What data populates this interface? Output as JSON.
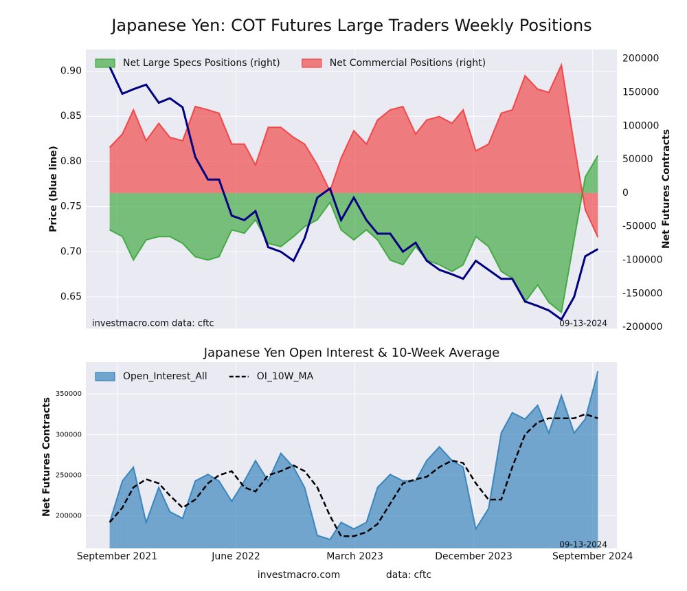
{
  "chart_data": [
    {
      "type": "area",
      "title": "Japanese Yen: COT Futures Large Traders Weekly Positions",
      "ylabel": "Price (blue line)",
      "y2label": "Net Futures Contracts",
      "annotations": [
        "investmacro.com    data: cftc",
        "09-13-2024"
      ],
      "grid": true,
      "legend": "upper left",
      "x": [
        2021.62,
        2021.7,
        2021.77,
        2021.85,
        2021.93,
        2022.0,
        2022.08,
        2022.16,
        2022.24,
        2022.31,
        2022.39,
        2022.47,
        2022.54,
        2022.62,
        2022.7,
        2022.78,
        2022.85,
        2022.93,
        2023.01,
        2023.08,
        2023.16,
        2023.24,
        2023.31,
        2023.39,
        2023.47,
        2023.55,
        2023.62,
        2023.7,
        2023.78,
        2023.85,
        2023.93,
        2024.01,
        2024.09,
        2024.16,
        2024.24,
        2024.32,
        2024.39,
        2024.47,
        2024.55,
        2024.62,
        2024.7
      ],
      "xlim": [
        2021.47,
        2024.82
      ],
      "xticks": [
        2021.667,
        2022.417,
        2023.167,
        2023.917,
        2024.667
      ],
      "ylim": [
        0.615,
        0.924
      ],
      "yticks": [
        {
          "value": 0.65,
          "label": "0.65"
        },
        {
          "value": 0.7,
          "label": "0.70"
        },
        0.75,
        {
          "value": 0.8,
          "label": "0.80"
        },
        0.85,
        {
          "value": 0.9,
          "label": "0.90"
        }
      ],
      "y2lim": [
        -202000,
        214000
      ],
      "y2ticks": [
        -200000,
        -150000,
        -100000,
        -50000,
        0,
        50000,
        100000,
        150000,
        200000
      ],
      "series": [
        {
          "name": "Net Large Specs Positions (right)",
          "color": "#2ca02c",
          "style": "area",
          "axis": "y2",
          "values": [
            -55000,
            -65000,
            -100000,
            -70000,
            -65000,
            -65000,
            -75000,
            -95000,
            -100000,
            -95000,
            -55000,
            -60000,
            -40000,
            -75000,
            -80000,
            -65000,
            -50000,
            -40000,
            -14000,
            -55000,
            -70000,
            -55000,
            -70000,
            -100000,
            -107000,
            -80000,
            -100000,
            -107000,
            -117000,
            -107000,
            -65000,
            -80000,
            -117000,
            -127000,
            -163000,
            -137000,
            -163000,
            -178000,
            -70000,
            24000,
            56000
          ]
        },
        {
          "name": "Net Commercial Positions (right)",
          "color": "#f03030",
          "style": "area",
          "axis": "y2",
          "values": [
            68000,
            88000,
            124000,
            78000,
            104000,
            83000,
            78000,
            129000,
            124000,
            119000,
            73000,
            73000,
            42000,
            98000,
            98000,
            83000,
            73000,
            42000,
            3000,
            52000,
            93000,
            73000,
            109000,
            124000,
            129000,
            88000,
            109000,
            114000,
            104000,
            124000,
            63000,
            73000,
            119000,
            124000,
            175000,
            155000,
            150000,
            191000,
            73000,
            -25000,
            -66000
          ]
        },
        {
          "color": "#000080",
          "style": "line",
          "values": [
            0.905,
            0.875,
            0.88,
            0.885,
            0.865,
            0.87,
            0.86,
            0.805,
            0.78,
            0.78,
            0.74,
            0.735,
            0.745,
            0.705,
            0.7,
            0.69,
            0.715,
            0.76,
            0.77,
            0.735,
            0.76,
            0.735,
            0.72,
            0.72,
            0.7,
            0.71,
            0.69,
            0.68,
            0.675,
            0.67,
            0.69,
            0.68,
            0.67,
            0.67,
            0.645,
            0.64,
            0.635,
            0.625,
            0.65,
            0.695,
            0.703
          ]
        }
      ]
    },
    {
      "type": "area",
      "title": "Japanese Yen Open Interest & 10-Week Average",
      "ylabel": "Net Futures Contracts",
      "annotations": [
        "09-13-2024",
        "investmacro.com",
        "data: cftc"
      ],
      "grid": true,
      "legend": "upper left",
      "x": [
        2021.62,
        2021.7,
        2021.77,
        2021.85,
        2021.93,
        2022.0,
        2022.08,
        2022.16,
        2022.24,
        2022.31,
        2022.39,
        2022.47,
        2022.54,
        2022.62,
        2022.7,
        2022.78,
        2022.85,
        2022.93,
        2023.01,
        2023.08,
        2023.16,
        2023.24,
        2023.31,
        2023.39,
        2023.47,
        2023.55,
        2023.62,
        2023.7,
        2023.78,
        2023.85,
        2023.93,
        2024.01,
        2024.09,
        2024.16,
        2024.24,
        2024.32,
        2024.39,
        2024.47,
        2024.55,
        2024.62,
        2024.7
      ],
      "xlim": [
        2021.47,
        2024.82
      ],
      "xticks": [
        {
          "value": 2021.667,
          "label": "September 2021"
        },
        {
          "value": 2022.417,
          "label": "June 2022"
        },
        {
          "value": 2023.167,
          "label": "March 2023"
        },
        {
          "value": 2023.917,
          "label": "December 2023"
        },
        {
          "value": 2024.667,
          "label": "September 2024"
        }
      ],
      "ylim": [
        160000,
        389000
      ],
      "yticks": [
        200000,
        250000,
        300000,
        350000
      ],
      "series": [
        {
          "name": "Open_Interest_All",
          "color": "#1f77b4",
          "style": "area",
          "values": [
            192000,
            243000,
            260000,
            192000,
            235000,
            205000,
            197000,
            243000,
            251000,
            243000,
            218000,
            243000,
            268000,
            243000,
            277000,
            260000,
            235000,
            176000,
            171000,
            192000,
            184000,
            192000,
            235000,
            251000,
            243000,
            243000,
            268000,
            285000,
            268000,
            260000,
            184000,
            209000,
            302000,
            327000,
            319000,
            336000,
            302000,
            348000,
            302000,
            319000,
            378000
          ]
        },
        {
          "name": "OI_10W_MA",
          "color": "#000000",
          "style": "dashed",
          "values": [
            192000,
            210000,
            235000,
            245000,
            240000,
            225000,
            210000,
            220000,
            240000,
            250000,
            255000,
            235000,
            230000,
            250000,
            255000,
            262000,
            255000,
            235000,
            200000,
            175000,
            175000,
            180000,
            190000,
            215000,
            240000,
            245000,
            248000,
            260000,
            268000,
            265000,
            240000,
            220000,
            220000,
            260000,
            300000,
            315000,
            320000,
            320000,
            320000,
            325000,
            320000
          ]
        }
      ]
    }
  ]
}
